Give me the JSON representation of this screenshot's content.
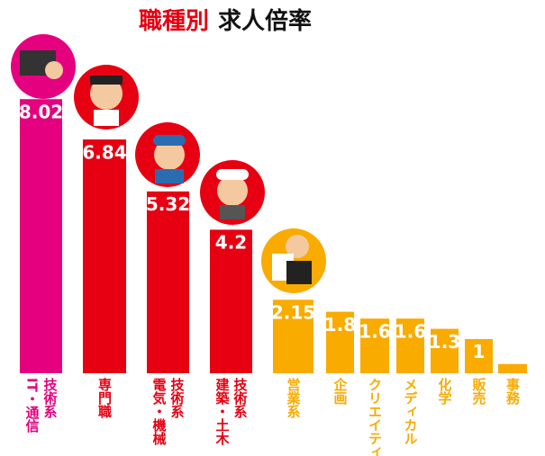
{
  "chart_data": {
    "type": "bar",
    "title": [
      "職種別",
      "求人倍率"
    ],
    "categories": [
      [
        "技術系",
        "IT・通信"
      ],
      [
        "専門職"
      ],
      [
        "技術系",
        "電気・機械"
      ],
      [
        "技術系",
        "建築・土木"
      ],
      [
        "営業系"
      ],
      [
        "企画"
      ],
      [
        "クリエイティブ"
      ],
      [
        "メディカル"
      ],
      [
        "化学"
      ],
      [
        "販売"
      ],
      [
        "事務"
      ]
    ],
    "values": [
      8.02,
      6.84,
      5.32,
      4.2,
      2.15,
      1.8,
      1.6,
      1.6,
      1.3,
      1,
      0.27
    ],
    "value_labels": [
      "8.02",
      "6.84",
      "5.32",
      "4.2",
      "2.15",
      "1.8",
      "1.6",
      "1.6",
      "1.3",
      "1",
      null
    ],
    "colors": [
      "#e5007f",
      "#e60012",
      "#e60012",
      "#e60012",
      "#f9ab00",
      "#f9ab00",
      "#f9ab00",
      "#f9ab00",
      "#f9ab00",
      "#f9ab00",
      "#f9ab00"
    ]
  }
}
